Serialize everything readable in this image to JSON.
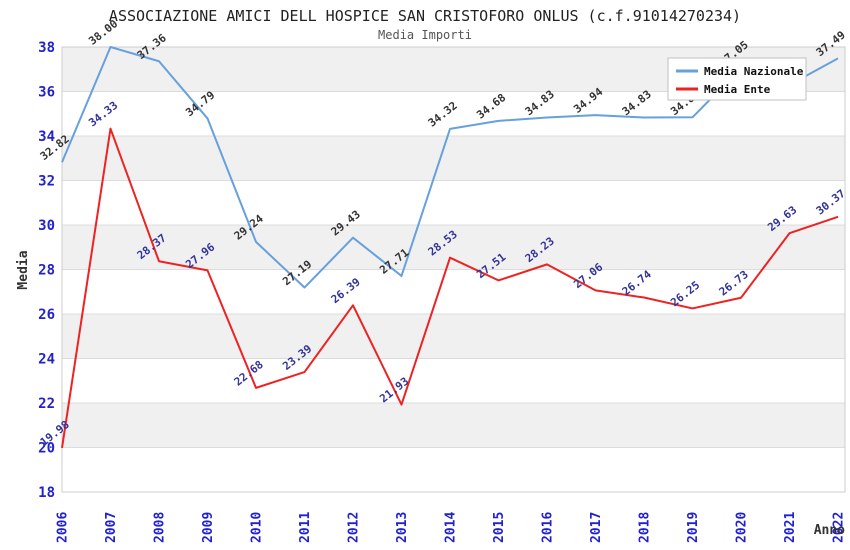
{
  "header": {
    "title": "ASSOCIAZIONE AMICI DELL HOSPICE SAN CRISTOFORO ONLUS (c.f.91014270234)",
    "subtitle": "Media Importi"
  },
  "chart_data": {
    "type": "line",
    "title": "ASSOCIAZIONE AMICI DELL HOSPICE SAN CRISTOFORO ONLUS (c.f.91014270234)",
    "subtitle": "Media Importi",
    "xlabel": "Anno",
    "ylabel": "Media",
    "ylim": [
      18,
      38
    ],
    "ytick_step": 2,
    "x_tick_rotation": -90,
    "grid": "horizontal gridlines every 2 units with alternating gray bands",
    "legend_position": "top-right",
    "categories": [
      2006,
      2007,
      2008,
      2009,
      2010,
      2011,
      2012,
      2013,
      2014,
      2015,
      2016,
      2017,
      2018,
      2019,
      2020,
      2021,
      2022
    ],
    "series": [
      {
        "name": "Media Nazionale",
        "color": "#66a0dd",
        "label_color": "#333333",
        "values": [
          32.82,
          38.0,
          37.36,
          34.79,
          29.24,
          27.19,
          29.43,
          27.71,
          34.32,
          34.68,
          34.83,
          34.94,
          34.83,
          34.84,
          37.05,
          36.3,
          37.49
        ]
      },
      {
        "name": "Media Ente",
        "color": "#ee2222",
        "label_color": "#333399",
        "values": [
          19.98,
          34.33,
          28.37,
          27.96,
          22.68,
          23.39,
          26.39,
          21.93,
          28.53,
          27.51,
          28.23,
          27.06,
          26.74,
          26.25,
          26.73,
          29.63,
          30.37
        ]
      }
    ]
  },
  "colors": {
    "band": "#f0f0f0",
    "plot_background": "#ffffff",
    "plot_border": "#cccccc",
    "gridline": "#dcdcdc",
    "tick_label": "#2222cc",
    "axis_title": "#333333",
    "legend_border": "#c0c0c0",
    "legend_background": "#ffffff",
    "legend_text": "#111111"
  }
}
